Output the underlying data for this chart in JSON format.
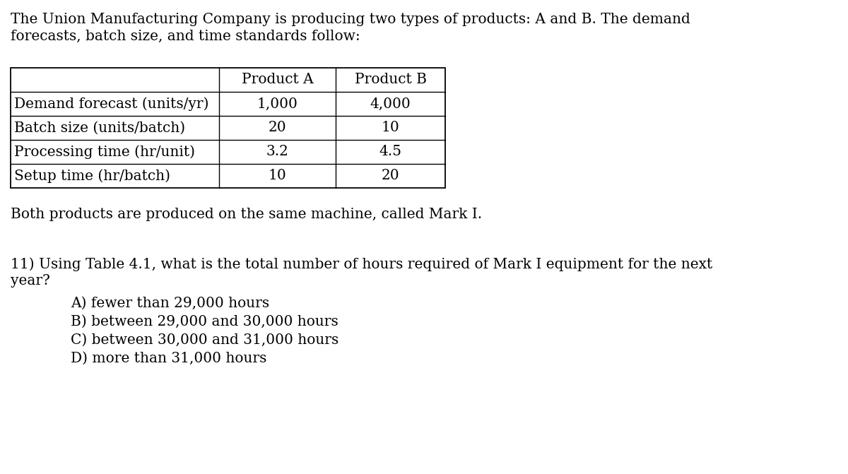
{
  "background_color": "#ffffff",
  "intro_text": "The Union Manufacturing Company is producing two types of products: A and B. The demand\nforecasts, batch size, and time standards follow:",
  "table": {
    "col_headers": [
      "",
      "Product A",
      "Product B"
    ],
    "rows": [
      [
        "Demand forecast (units/yr)",
        "1,000",
        "4,000"
      ],
      [
        "Batch size (units/batch)",
        "20",
        "10"
      ],
      [
        "Processing time (hr/unit)",
        "3.2",
        "4.5"
      ],
      [
        "Setup time (hr/batch)",
        "10",
        "20"
      ]
    ]
  },
  "machine_text": "Both products are produced on the same machine, called Mark I.",
  "question_text_line1": "11) Using Table 4.1, what is the total number of hours required of Mark I equipment for the next",
  "question_text_line2": "year?",
  "choices": [
    "A) fewer than 29,000 hours",
    "B) between 29,000 and 30,000 hours",
    "C) between 30,000 and 31,000 hours",
    "D) more than 31,000 hours"
  ],
  "font_size": 14.5,
  "font_family": "DejaVu Serif",
  "text_color": "#000000",
  "fig_width": 12.0,
  "fig_height": 6.71,
  "dpi": 100
}
